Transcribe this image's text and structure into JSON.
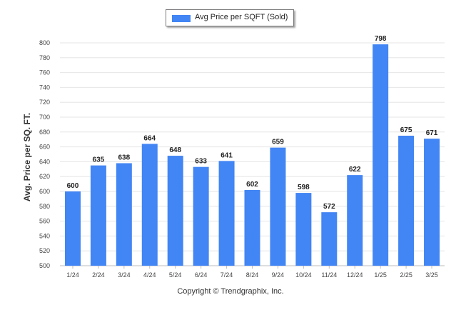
{
  "colors": {
    "bar": "#4285f4",
    "grid": "#e6e6e6",
    "axis": "#bdbdbd"
  },
  "legend": {
    "label": "Avg Price per SQFT (Sold)"
  },
  "footer": {
    "copyright": "Copyright © Trendgraphix, Inc."
  },
  "chart_data": {
    "type": "bar",
    "ylabel": "Avg. Price per SQ. FT.",
    "ylim": [
      500,
      800
    ],
    "ytick_step": 20,
    "grid": true,
    "legend_position": "top-center",
    "categories": [
      "1/24",
      "2/24",
      "3/24",
      "4/24",
      "5/24",
      "6/24",
      "7/24",
      "8/24",
      "9/24",
      "10/24",
      "11/24",
      "12/24",
      "1/25",
      "2/25",
      "3/25"
    ],
    "series": [
      {
        "name": "Avg Price per SQFT (Sold)",
        "values": [
          600,
          635,
          638,
          664,
          648,
          633,
          641,
          602,
          659,
          598,
          572,
          622,
          798,
          675,
          671
        ]
      }
    ]
  }
}
